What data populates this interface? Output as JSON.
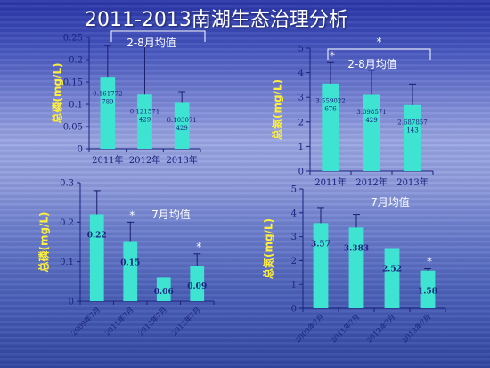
{
  "slide": {
    "title": "2011-2013南湖生态治理分析"
  },
  "colors": {
    "bar": "#3fe3d2",
    "axis": "#1a237e",
    "text": "#ffffff",
    "ylabel": "#ffef3a",
    "label": "#1a237e"
  },
  "chart_data": [
    {
      "type": "bar",
      "title": "2-8月均值",
      "ylabel": "总磷(mg/L)",
      "categories": [
        "2011年",
        "2012年",
        "2013年"
      ],
      "values": [
        0.161772789,
        0.121571429,
        0.103071429
      ],
      "value_labels": [
        "0.161772\n789",
        "0.121571\n429",
        "0.103071\n429"
      ],
      "errors": [
        0.07,
        0.11,
        0.025
      ],
      "ylim": [
        0,
        0.25
      ],
      "yticks": [
        "0",
        "0.05",
        "0.1",
        "0.15",
        "0.2",
        "0.25"
      ],
      "bracket": true,
      "significance": []
    },
    {
      "type": "bar",
      "title": "2-8月均值",
      "ylabel": "总氮(mg/L)",
      "categories": [
        "2011年",
        "2012年",
        "2013年"
      ],
      "values": [
        3.559022676,
        3.098571429,
        2.687857143
      ],
      "value_labels": [
        "3.559022\n676",
        "3.098571\n429",
        "2.687857\n143"
      ],
      "errors": [
        0.85,
        1.0,
        0.85
      ],
      "ylim": [
        0,
        5
      ],
      "yticks": [
        "0",
        "1",
        "2",
        "3",
        "4",
        "5"
      ],
      "bracket": true,
      "significance": [
        "*"
      ]
    },
    {
      "type": "bar",
      "title": "7月均值",
      "ylabel": "总磷(mg/L)",
      "categories": [
        "2009年7月",
        "2011年7月",
        "2012年7月",
        "2013年7月"
      ],
      "values": [
        0.22,
        0.15,
        0.06,
        0.09
      ],
      "value_labels": [
        "0.22",
        "0.15",
        "0.06",
        "0.09"
      ],
      "errors": [
        0.06,
        0.05,
        0.0,
        0.03
      ],
      "ylim": [
        0,
        0.3
      ],
      "yticks": [
        "0",
        "0.1",
        "0.2",
        "0.3"
      ],
      "bracket": false,
      "significance": [
        "",
        "*",
        "",
        "*"
      ]
    },
    {
      "type": "bar",
      "title": "7月均值",
      "ylabel": "总氮(mg/L)",
      "categories": [
        "2009年7月",
        "2011年7月",
        "2012年7月",
        "2013年7月"
      ],
      "values": [
        3.57,
        3.383,
        2.52,
        1.58
      ],
      "value_labels": [
        "3.57",
        "3.383",
        "2.52",
        "1.58"
      ],
      "errors": [
        0.65,
        0.55,
        0.0,
        0.08
      ],
      "ylim": [
        0,
        5
      ],
      "yticks": [
        "0",
        "1",
        "2",
        "3",
        "4",
        "5"
      ],
      "bracket": false,
      "significance": [
        "",
        "",
        "",
        "*"
      ]
    }
  ]
}
